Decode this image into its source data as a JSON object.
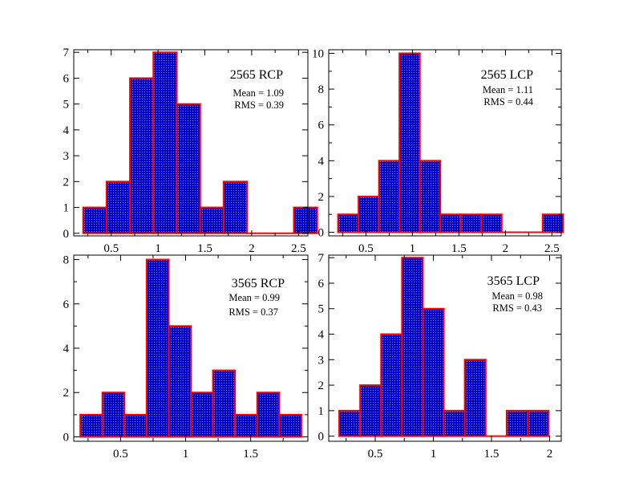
{
  "colors": {
    "bar_fill": "#0000cc",
    "bar_edge": "#ff0000",
    "frame": "#000000"
  },
  "chart_data": [
    {
      "type": "bar",
      "title": "2565 RCP",
      "stats": {
        "mean": "Mean = 1.09",
        "rms": "RMS = 0.39"
      },
      "x": [
        0.2,
        0.45,
        0.7,
        0.95,
        1.2,
        1.45,
        1.7,
        1.95,
        2.2,
        2.45
      ],
      "bin_width": 0.25,
      "values": [
        1,
        2,
        6,
        7,
        5,
        1,
        2,
        0,
        0,
        1
      ],
      "xlim": [
        0.1,
        2.6
      ],
      "ylim": [
        -0.1,
        7.1
      ],
      "xticks": [
        0.5,
        1,
        1.5,
        2,
        2.5
      ],
      "xtick_labels": [
        "0.5",
        "1",
        "1.5",
        "2",
        "2.5"
      ],
      "yticks": [
        0,
        1,
        2,
        3,
        4,
        5,
        6,
        7
      ],
      "ytick_labels": [
        "0",
        "1",
        "2",
        "3",
        "4",
        "5",
        "6",
        "7"
      ],
      "yminor": []
    },
    {
      "type": "bar",
      "title": "2565 LCP",
      "stats": {
        "mean": "Mean = 1.11",
        "rms": "RMS = 0.44"
      },
      "x": [
        0.2,
        0.42,
        0.64,
        0.86,
        1.08,
        1.3,
        1.52,
        1.74,
        1.96,
        2.18,
        2.4
      ],
      "bin_width": 0.22,
      "values": [
        1,
        2,
        4,
        10,
        4,
        1,
        1,
        1,
        0,
        0,
        1
      ],
      "xlim": [
        0.1,
        2.6
      ],
      "ylim": [
        -0.2,
        10.2
      ],
      "xticks": [
        0.5,
        1,
        1.5,
        2,
        2.5
      ],
      "xtick_labels": [
        "0.5",
        "1",
        "1.5",
        "2",
        "2.5"
      ],
      "yticks": [
        0,
        2,
        4,
        6,
        8,
        10
      ],
      "ytick_labels": [
        "0",
        "2",
        "4",
        "6",
        "8",
        "10"
      ],
      "yminor": [
        1,
        3,
        5,
        7,
        9
      ]
    },
    {
      "type": "bar",
      "title": "3565 RCP",
      "stats": {
        "mean": "Mean = 0.99",
        "rms": "RMS = 0.37"
      },
      "x": [
        0.19,
        0.36,
        0.53,
        0.7,
        0.87,
        1.04,
        1.21,
        1.38,
        1.55,
        1.72
      ],
      "bin_width": 0.17,
      "values": [
        1,
        2,
        1,
        8,
        5,
        2,
        3,
        1,
        2,
        1
      ],
      "xlim": [
        0.14,
        1.94
      ],
      "ylim": [
        -0.2,
        8.2
      ],
      "xticks": [
        0.5,
        1,
        1.5
      ],
      "xtick_labels": [
        "0.5",
        "1",
        "1.5"
      ],
      "yticks": [
        0,
        2,
        4,
        6,
        8
      ],
      "ytick_labels": [
        "0",
        "2",
        "4",
        "6",
        "8"
      ],
      "yminor": [
        1,
        3,
        5,
        7
      ]
    },
    {
      "type": "bar",
      "title": "3565 LCP",
      "stats": {
        "mean": "Mean = 0.98",
        "rms": "RMS = 0.43"
      },
      "x": [
        0.19,
        0.37,
        0.55,
        0.73,
        0.91,
        1.09,
        1.27,
        1.45,
        1.63,
        1.81
      ],
      "bin_width": 0.18,
      "values": [
        1,
        2,
        4,
        7,
        5,
        1,
        3,
        0,
        1,
        1
      ],
      "xlim": [
        0.1,
        2.1
      ],
      "ylim": [
        -0.2,
        7.1
      ],
      "xticks": [
        0.5,
        1,
        1.5,
        2
      ],
      "xtick_labels": [
        "0.5",
        "1",
        "1.5",
        "2"
      ],
      "yticks": [
        0,
        1,
        2,
        3,
        4,
        5,
        6,
        7
      ],
      "ytick_labels": [
        "0",
        "1",
        "2",
        "3",
        "4",
        "5",
        "6",
        "7"
      ],
      "yminor": []
    }
  ]
}
